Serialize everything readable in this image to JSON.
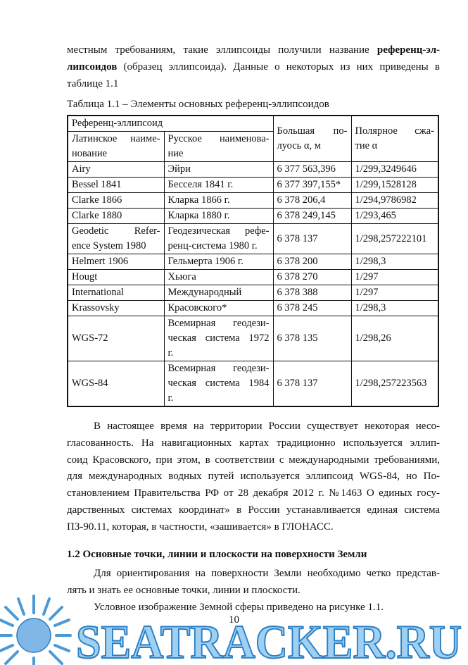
{
  "intro": {
    "lines": [
      [
        {
          "text": "местным требованиям, такие эллипсоиды получили название ",
          "bold": false
        },
        {
          "text": "референц-эл-",
          "bold": true
        }
      ],
      [
        {
          "text": "липсоидов",
          "bold": true
        },
        {
          "text": " (образец эллипсоида). Данные о некоторых из них приведены в",
          "bold": false
        }
      ],
      [
        {
          "text": "таблице 1.1",
          "bold": false
        }
      ]
    ]
  },
  "table": {
    "caption": "Таблица 1.1 – Элементы основных референц-эллипсоидов",
    "group_header": "Референц-эллипсоид",
    "columns": [
      [
        "Латинское наиме-",
        "нование"
      ],
      [
        "Русское наименова-",
        "ние"
      ],
      [
        "Большая по-",
        "луось α, м"
      ],
      [
        "Полярное сжа-",
        "тие α"
      ]
    ],
    "rows": [
      [
        "Airy",
        "Эйри",
        "6 377 563,396",
        "1/299,3249646"
      ],
      [
        "Bessel 1841",
        "Бесселя 1841 г.",
        "6 377 397,155*",
        "1/299,1528128"
      ],
      [
        "Clarke 1866",
        "Кларка 1866 г.",
        "6 378 206,4",
        "1/294,9786982"
      ],
      [
        "Clarke 1880",
        "Кларка 1880 г.",
        "6 378 249,145",
        "1/293,465"
      ],
      [
        [
          "Geodetic Refer-",
          "ence System 1980"
        ],
        [
          "Геодезическая рефе-",
          "ренц-система 1980 г."
        ],
        "6 378 137",
        "1/298,257222101"
      ],
      [
        "Helmert 1906",
        "Гельмерта 1906 г.",
        "6 378 200",
        "1/298,3"
      ],
      [
        "Hougt",
        "Хьюга",
        "6 378 270",
        "1/297"
      ],
      [
        "International",
        "Международный",
        "6 378 388",
        "1/297"
      ],
      [
        "Krassovsky",
        "Красовского*",
        "6 378 245",
        "1/298,3"
      ],
      [
        "WGS-72",
        [
          "Всемирная геодези-",
          "ческая система 1972",
          "г."
        ],
        "6 378 135",
        "1/298,26"
      ],
      [
        "WGS-84",
        [
          "Всемирная геодези-",
          "ческая система 1984",
          "г."
        ],
        "6 378 137",
        "1/298,257223563"
      ]
    ]
  },
  "paragraph_1": {
    "lines": [
      "В настоящее время на территории России существует некоторая несо-",
      "гласованность. На навигационных картах традиционно используется эллип-",
      "соид Красовского, при этом, в соответствии с международными требованиями,",
      "для международных водных путей используется эллипсоид WGS-84, но По-",
      "становлением Правительства РФ от 28 декабря 2012 г. №1463 О единых госу-",
      "дарственных системах координат» в России устанавливается единая система",
      "ПЗ-90.11, которая, в частности, «зашивается» в ГЛОНАСС."
    ]
  },
  "section_heading": "1.2 Основные точки, линии и плоскости на поверхности Земли",
  "paragraph_2": {
    "lines": [
      "Для ориентирования на поверхности Земли необходимо четко представ-",
      "лять и знать ее основные точки, линии и плоскости."
    ]
  },
  "paragraph_3": {
    "lines": [
      "Условное изображение Земной сферы приведено на рисунке 1.1."
    ]
  },
  "page_number": "10",
  "watermark": "SEATRACKER.RU"
}
